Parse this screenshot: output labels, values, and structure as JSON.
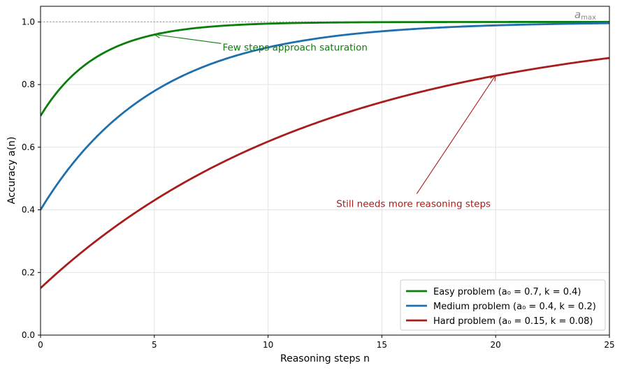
{
  "chart_data": {
    "type": "line",
    "xlabel": "Reasoning steps n",
    "ylabel": "Accuracy a(n)",
    "xlim": [
      0,
      25
    ],
    "ylim": [
      0,
      1.05
    ],
    "xticks": [
      0,
      5,
      10,
      15,
      20,
      25
    ],
    "yticks": [
      0.0,
      0.2,
      0.4,
      0.6,
      0.8,
      1.0
    ],
    "ytick_labels": [
      "0.0",
      "0.2",
      "0.4",
      "0.6",
      "0.8",
      "1.0"
    ],
    "grid": true,
    "legend_position": "lower-right",
    "reference_line": {
      "y": 1.0,
      "label": "a",
      "label_sub": "max",
      "style": "dotted",
      "color": "#999999"
    },
    "series": [
      {
        "name": "Easy problem (a₀ = 0.7, k = 0.4)",
        "a0": 0.7,
        "k": 0.4,
        "color": "#0a7d0a"
      },
      {
        "name": "Medium problem (a₀ = 0.4, k = 0.2)",
        "a0": 0.4,
        "k": 0.2,
        "color": "#1f6fad"
      },
      {
        "name": "Hard problem (a₀ = 0.15, k = 0.08)",
        "a0": 0.15,
        "k": 0.08,
        "color": "#a81c1c"
      }
    ],
    "annotations": [
      {
        "text": "Few steps approach saturation",
        "point": [
          5,
          0.96
        ],
        "text_pos": [
          8,
          0.92
        ],
        "color": "#0a7d0a"
      },
      {
        "text": "Still needs more reasoning steps",
        "point": [
          20,
          0.83
        ],
        "text_pos": [
          13,
          0.42
        ],
        "color": "#a81c1c"
      }
    ]
  }
}
